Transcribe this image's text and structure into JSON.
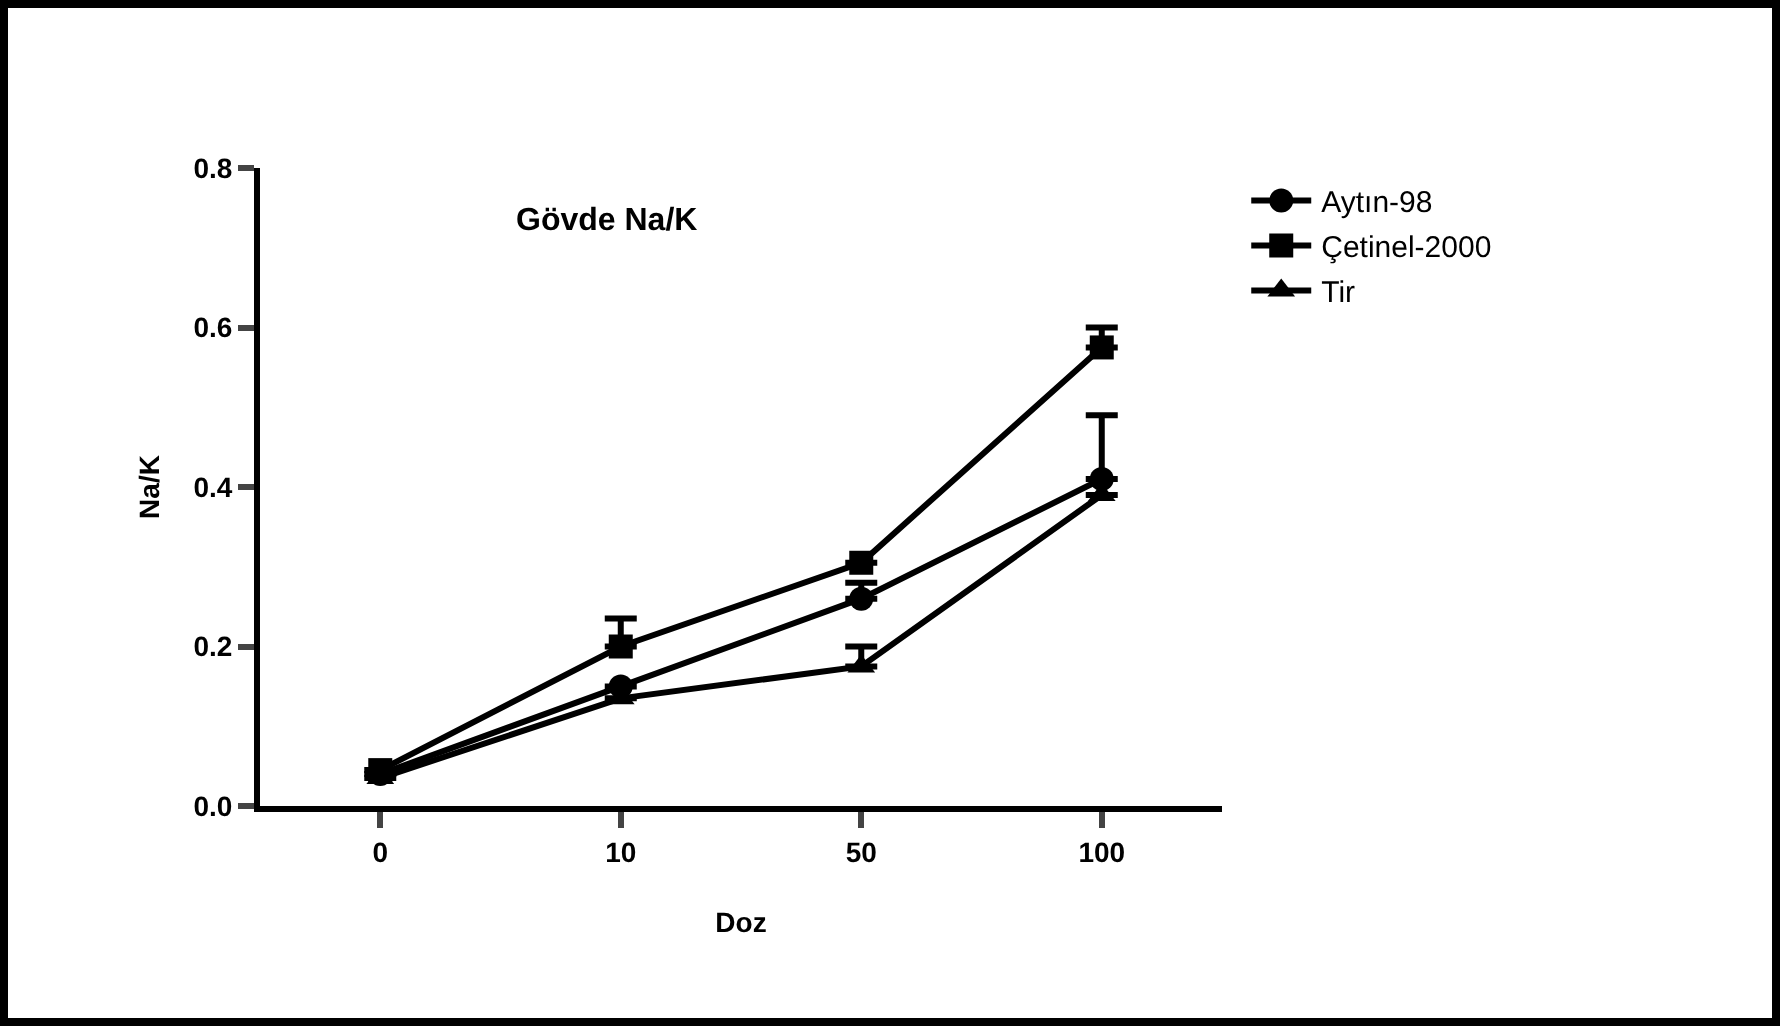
{
  "chart_data": {
    "type": "line",
    "title": "Gövde Na/K",
    "xlabel": "Doz",
    "ylabel": "Na/K",
    "categories": [
      "0",
      "10",
      "50",
      "100"
    ],
    "series": [
      {
        "name": "Aytın-98",
        "color": "#000000",
        "marker": "circle",
        "values": [
          0.04,
          0.15,
          0.26,
          0.41
        ],
        "errors": [
          null,
          null,
          [
            0.26,
            0.28
          ],
          [
            0.41,
            0.49
          ]
        ]
      },
      {
        "name": "Çetinel-2000",
        "color": "#000000",
        "marker": "square",
        "values": [
          0.045,
          0.2,
          0.305,
          0.575
        ],
        "errors": [
          null,
          [
            0.2,
            0.235
          ],
          null,
          [
            0.575,
            0.6
          ]
        ]
      },
      {
        "name": "Tir",
        "color": "#000000",
        "marker": "triangle",
        "values": [
          0.035,
          0.135,
          0.175,
          0.39
        ],
        "errors": [
          null,
          null,
          [
            0.175,
            0.2
          ],
          null
        ]
      }
    ],
    "ylim": [
      0,
      0.8
    ],
    "yticks": [
      {
        "value": 0,
        "label": "0.0"
      },
      0.2,
      0.4,
      0.6,
      0.8
    ],
    "grid": false,
    "legend": "right",
    "line_style": "solid"
  }
}
